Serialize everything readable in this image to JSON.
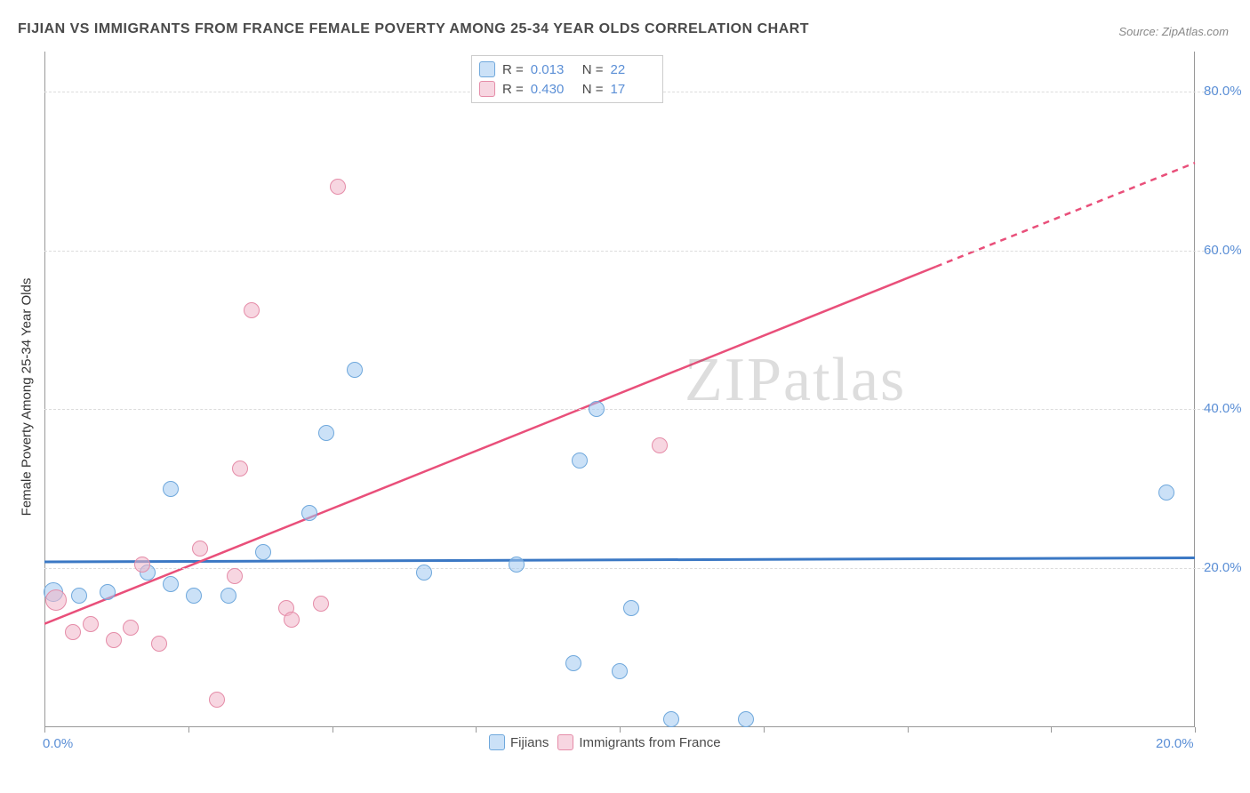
{
  "title": "FIJIAN VS IMMIGRANTS FROM FRANCE FEMALE POVERTY AMONG 25-34 YEAR OLDS CORRELATION CHART",
  "source_label": "Source:",
  "source_name": "ZipAtlas.com",
  "watermark": "ZIPatlas",
  "y_axis_label": "Female Poverty Among 25-34 Year Olds",
  "chart": {
    "type": "scatter",
    "xlim": [
      0,
      20
    ],
    "ylim": [
      0,
      85
    ],
    "x_ticks": [
      0,
      2.5,
      5,
      7.5,
      10,
      12.5,
      15,
      17.5,
      20
    ],
    "x_tick_labels": {
      "0": "0.0%",
      "20": "20.0%"
    },
    "y_gridlines": [
      20,
      40,
      60,
      80
    ],
    "y_tick_labels": {
      "20": "20.0%",
      "40": "40.0%",
      "60": "60.0%",
      "80": "80.0%"
    },
    "background_color": "#ffffff",
    "grid_color": "#dcdcdc",
    "axis_color": "#999999",
    "tick_label_color": "#5b8fd6",
    "marker_radius": 9,
    "marker_border_width": 1.5,
    "series": [
      {
        "name": "Fijians",
        "fill_color": "rgba(160,200,240,0.55)",
        "stroke_color": "#6fa8dc",
        "trend_color": "#3b78c4",
        "trend_width": 3,
        "R": "0.013",
        "N": "22",
        "trend": {
          "x1": 0,
          "y1": 20.8,
          "x2": 20,
          "y2": 21.3,
          "dash_from_x": null
        },
        "points": [
          {
            "x": 0.15,
            "y": 17.0,
            "r": 11
          },
          {
            "x": 0.6,
            "y": 16.5
          },
          {
            "x": 1.1,
            "y": 17.0
          },
          {
            "x": 1.8,
            "y": 19.5
          },
          {
            "x": 2.2,
            "y": 18.0
          },
          {
            "x": 2.6,
            "y": 16.5
          },
          {
            "x": 2.2,
            "y": 30.0
          },
          {
            "x": 3.2,
            "y": 16.5
          },
          {
            "x": 3.8,
            "y": 22.0
          },
          {
            "x": 4.6,
            "y": 27.0
          },
          {
            "x": 4.9,
            "y": 37.0
          },
          {
            "x": 5.4,
            "y": 45.0
          },
          {
            "x": 6.6,
            "y": 19.5
          },
          {
            "x": 8.2,
            "y": 20.5
          },
          {
            "x": 9.2,
            "y": 8.0
          },
          {
            "x": 9.3,
            "y": 33.5
          },
          {
            "x": 9.6,
            "y": 40.0
          },
          {
            "x": 10.0,
            "y": 7.0
          },
          {
            "x": 10.2,
            "y": 15.0
          },
          {
            "x": 10.9,
            "y": 1.0
          },
          {
            "x": 12.2,
            "y": 1.0
          },
          {
            "x": 19.5,
            "y": 29.5
          }
        ]
      },
      {
        "name": "Immigrants from France",
        "fill_color": "rgba(240,180,200,0.55)",
        "stroke_color": "#e58ca8",
        "trend_color": "#e94f7a",
        "trend_width": 2.5,
        "R": "0.430",
        "N": "17",
        "trend": {
          "x1": 0,
          "y1": 13.0,
          "x2": 20,
          "y2": 71.0,
          "dash_from_x": 15.5
        },
        "points": [
          {
            "x": 0.2,
            "y": 16.0,
            "r": 12
          },
          {
            "x": 0.5,
            "y": 12.0
          },
          {
            "x": 0.8,
            "y": 13.0
          },
          {
            "x": 1.2,
            "y": 11.0
          },
          {
            "x": 1.5,
            "y": 12.5
          },
          {
            "x": 1.7,
            "y": 20.5
          },
          {
            "x": 2.0,
            "y": 10.5
          },
          {
            "x": 2.7,
            "y": 22.5
          },
          {
            "x": 3.0,
            "y": 3.5
          },
          {
            "x": 3.3,
            "y": 19.0
          },
          {
            "x": 3.4,
            "y": 32.5
          },
          {
            "x": 3.6,
            "y": 52.5
          },
          {
            "x": 4.2,
            "y": 15.0
          },
          {
            "x": 4.3,
            "y": 13.5
          },
          {
            "x": 4.8,
            "y": 15.5
          },
          {
            "x": 5.1,
            "y": 68.0
          },
          {
            "x": 10.7,
            "y": 35.5
          }
        ]
      }
    ]
  },
  "stats_box": {
    "rows": [
      {
        "swatch_fill": "rgba(160,200,240,0.55)",
        "swatch_stroke": "#6fa8dc",
        "r_label": "R  =",
        "r_val": "0.013",
        "n_label": "N  =",
        "n_val": "22"
      },
      {
        "swatch_fill": "rgba(240,180,200,0.55)",
        "swatch_stroke": "#e58ca8",
        "r_label": "R  =",
        "r_val": "0.430",
        "n_label": "N  =",
        "n_val": "17"
      }
    ]
  },
  "legend_bottom": {
    "items": [
      {
        "swatch_fill": "rgba(160,200,240,0.55)",
        "swatch_stroke": "#6fa8dc",
        "label": "Fijians"
      },
      {
        "swatch_fill": "rgba(240,180,200,0.55)",
        "swatch_stroke": "#e58ca8",
        "label": "Immigrants from France"
      }
    ]
  }
}
